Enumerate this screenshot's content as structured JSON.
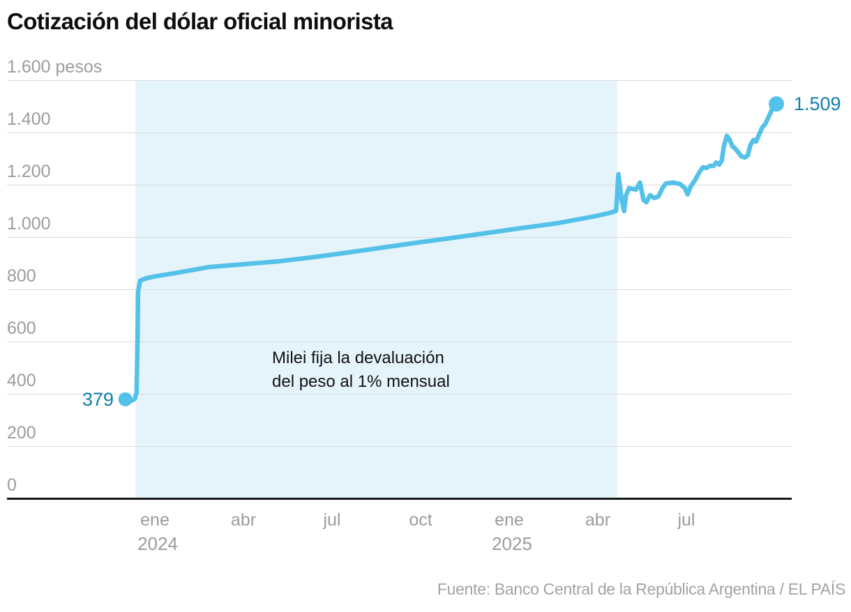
{
  "header": {
    "title": "Cotización del dólar oficial minorista"
  },
  "source": {
    "text": "Fuente: Banco Central de la República Argentina / EL PAÍS"
  },
  "colors": {
    "line": "#54c1e9",
    "band": "#e5f4fb",
    "accent": "#0f7fae",
    "grid": "#d9d9d9",
    "axis": "#161616",
    "tick_text": "#9c9c9c",
    "title_text": "#0d0d0d",
    "annotation_text": "#111111",
    "source_text": "#a3a3a3"
  },
  "chart_data": {
    "type": "line",
    "title": "Cotización del dólar oficial minorista",
    "unit": "pesos",
    "ylim": [
      0,
      1600
    ],
    "grid": true,
    "y_ticks": [
      {
        "value": 1600,
        "label": "1.600 pesos"
      },
      {
        "value": 1400,
        "label": "1.400"
      },
      {
        "value": 1200,
        "label": "1.200"
      },
      {
        "value": 1000,
        "label": "1.000"
      },
      {
        "value": 800,
        "label": "800"
      },
      {
        "value": 600,
        "label": "600"
      },
      {
        "value": 400,
        "label": "400"
      },
      {
        "value": 200,
        "label": "200"
      },
      {
        "value": 0,
        "label": "0"
      }
    ],
    "x_ticks": [
      {
        "t": 1,
        "label": "ene",
        "year": "2024"
      },
      {
        "t": 4,
        "label": "abr",
        "year": ""
      },
      {
        "t": 7,
        "label": "jul",
        "year": ""
      },
      {
        "t": 10,
        "label": "oct",
        "year": ""
      },
      {
        "t": 13,
        "label": "ene",
        "year": "2025"
      },
      {
        "t": 16,
        "label": "abr",
        "year": ""
      },
      {
        "t": 19,
        "label": "jul",
        "year": ""
      }
    ],
    "start_point": {
      "label": "379",
      "value": 379
    },
    "end_point": {
      "label": "1.509",
      "value": 1509
    },
    "annotation": {
      "line1": "Milei fija la devaluación",
      "line2": "del peso al 1% mensual"
    },
    "highlight_band": {
      "t_start": 0.33,
      "t_end": 16.66
    },
    "points": [
      [
        0.0,
        379
      ],
      [
        0.12,
        375
      ],
      [
        0.22,
        374
      ],
      [
        0.32,
        381
      ],
      [
        0.38,
        405
      ],
      [
        0.41,
        600
      ],
      [
        0.43,
        790
      ],
      [
        0.5,
        833
      ],
      [
        0.7,
        842
      ],
      [
        1.0,
        849
      ],
      [
        1.65,
        861
      ],
      [
        2.84,
        885
      ],
      [
        4.02,
        896
      ],
      [
        5.2,
        907
      ],
      [
        6.38,
        923
      ],
      [
        7.56,
        941
      ],
      [
        8.74,
        960
      ],
      [
        9.92,
        979
      ],
      [
        11.1,
        997
      ],
      [
        12.29,
        1016
      ],
      [
        13.47,
        1035
      ],
      [
        14.65,
        1053
      ],
      [
        15.83,
        1078
      ],
      [
        16.4,
        1092
      ],
      [
        16.62,
        1100
      ],
      [
        16.7,
        1240
      ],
      [
        16.82,
        1133
      ],
      [
        16.89,
        1099
      ],
      [
        16.96,
        1160
      ],
      [
        17.06,
        1187
      ],
      [
        17.29,
        1181
      ],
      [
        17.43,
        1208
      ],
      [
        17.55,
        1141
      ],
      [
        17.65,
        1133
      ],
      [
        17.77,
        1160
      ],
      [
        17.91,
        1149
      ],
      [
        18.05,
        1155
      ],
      [
        18.19,
        1187
      ],
      [
        18.31,
        1205
      ],
      [
        18.55,
        1208
      ],
      [
        18.78,
        1203
      ],
      [
        18.95,
        1187
      ],
      [
        19.04,
        1163
      ],
      [
        19.14,
        1192
      ],
      [
        19.3,
        1219
      ],
      [
        19.44,
        1248
      ],
      [
        19.56,
        1267
      ],
      [
        19.68,
        1264
      ],
      [
        19.8,
        1272
      ],
      [
        19.92,
        1272
      ],
      [
        20.01,
        1285
      ],
      [
        20.11,
        1277
      ],
      [
        20.2,
        1293
      ],
      [
        20.27,
        1347
      ],
      [
        20.37,
        1387
      ],
      [
        20.46,
        1373
      ],
      [
        20.56,
        1347
      ],
      [
        20.65,
        1339
      ],
      [
        20.75,
        1325
      ],
      [
        20.86,
        1309
      ],
      [
        20.98,
        1304
      ],
      [
        21.08,
        1312
      ],
      [
        21.17,
        1352
      ],
      [
        21.27,
        1371
      ],
      [
        21.36,
        1365
      ],
      [
        21.45,
        1389
      ],
      [
        21.57,
        1419
      ],
      [
        21.67,
        1432
      ],
      [
        21.76,
        1453
      ],
      [
        21.86,
        1477
      ],
      [
        21.95,
        1499
      ],
      [
        22.05,
        1509
      ]
    ]
  }
}
